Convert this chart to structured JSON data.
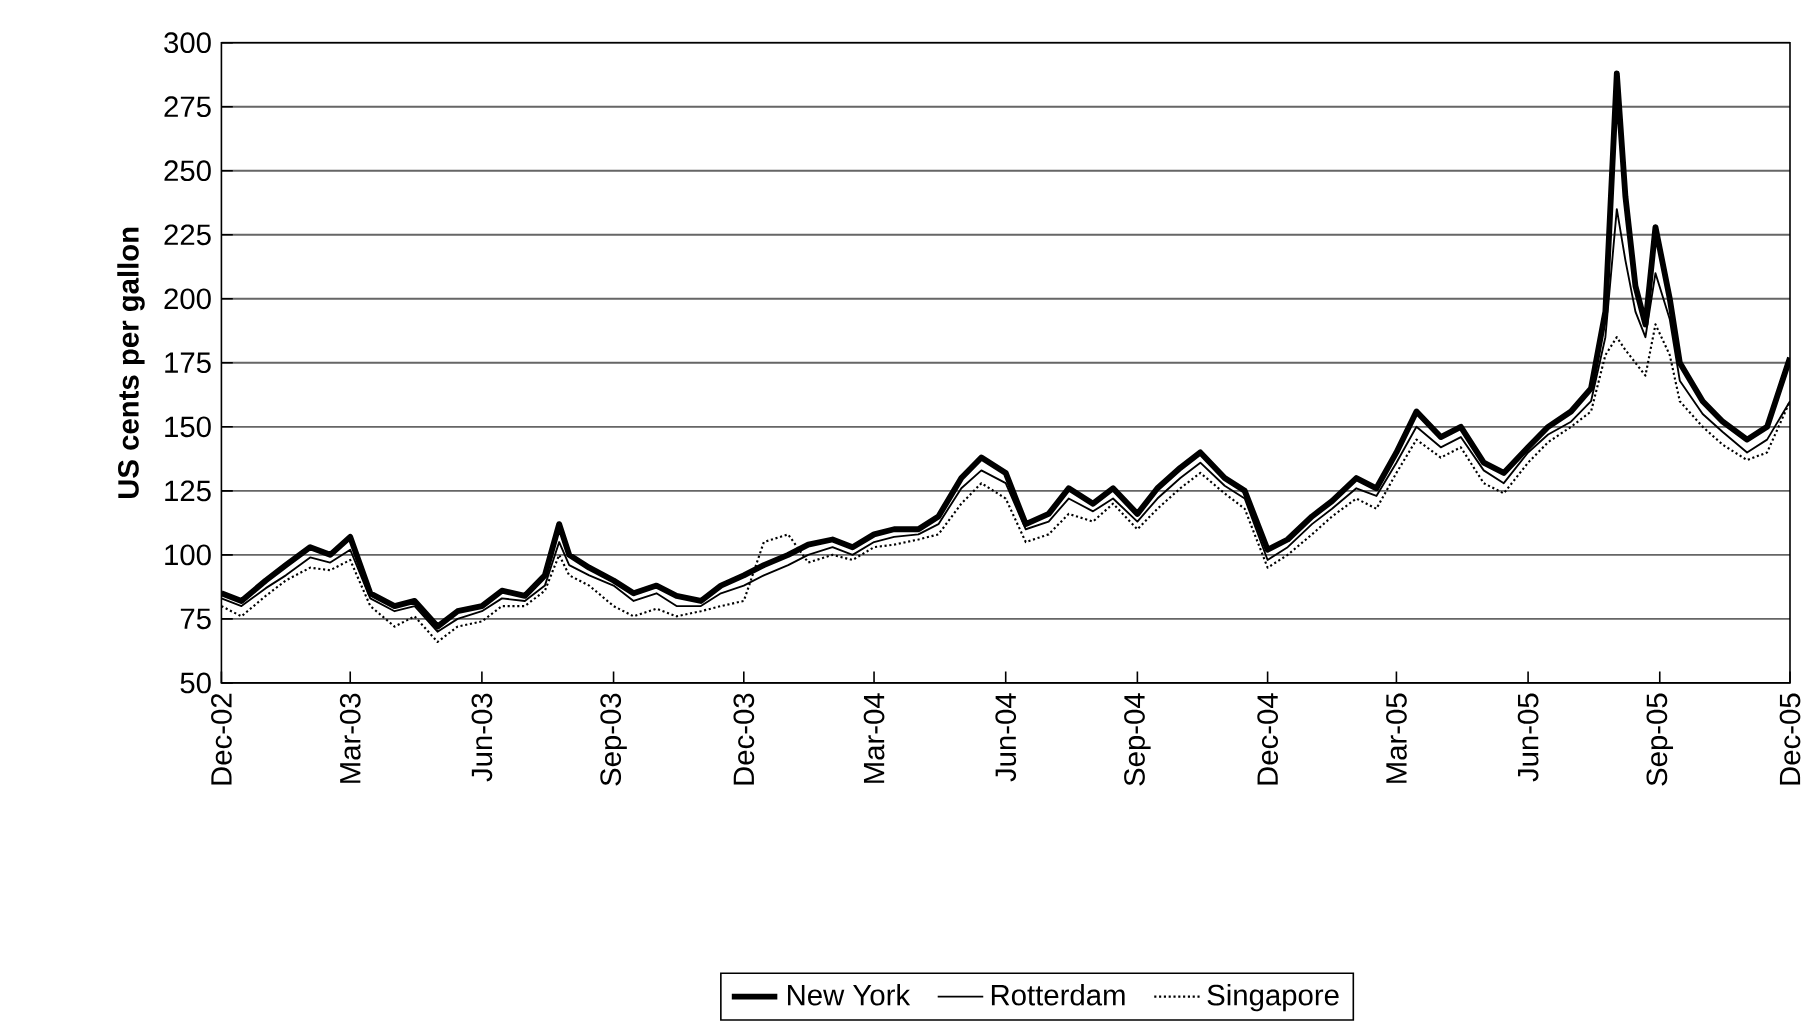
{
  "chart_data": {
    "type": "line",
    "ylabel": "US cents per gallon",
    "x": [
      "2002-12-01",
      "2002-12-15",
      "2003-01-01",
      "2003-01-15",
      "2003-02-01",
      "2003-02-15",
      "2003-03-01",
      "2003-03-15",
      "2003-04-01",
      "2003-04-15",
      "2003-05-01",
      "2003-05-15",
      "2003-06-01",
      "2003-06-15",
      "2003-07-01",
      "2003-07-15",
      "2003-07-25",
      "2003-08-01",
      "2003-08-15",
      "2003-09-01",
      "2003-09-15",
      "2003-10-01",
      "2003-10-15",
      "2003-11-01",
      "2003-11-15",
      "2003-12-01",
      "2003-12-15",
      "2004-01-01",
      "2004-01-15",
      "2004-02-01",
      "2004-02-15",
      "2004-03-01",
      "2004-03-15",
      "2004-04-01",
      "2004-04-15",
      "2004-05-01",
      "2004-05-15",
      "2004-06-01",
      "2004-06-15",
      "2004-07-01",
      "2004-07-15",
      "2004-08-01",
      "2004-08-15",
      "2004-09-01",
      "2004-09-15",
      "2004-10-01",
      "2004-10-15",
      "2004-11-01",
      "2004-11-15",
      "2004-12-01",
      "2004-12-15",
      "2005-01-01",
      "2005-01-15",
      "2005-02-01",
      "2005-02-15",
      "2005-03-01",
      "2005-03-15",
      "2005-04-01",
      "2005-04-15",
      "2005-05-01",
      "2005-05-15",
      "2005-06-01",
      "2005-06-15",
      "2005-07-01",
      "2005-07-15",
      "2005-07-25",
      "2005-08-02",
      "2005-08-08",
      "2005-08-15",
      "2005-08-22",
      "2005-08-29",
      "2005-09-08",
      "2005-09-15",
      "2005-10-01",
      "2005-10-15",
      "2005-11-01",
      "2005-11-15",
      "2005-12-01"
    ],
    "series": [
      {
        "name": "New York",
        "color": "#000000",
        "line_style": "solid",
        "values": [
          85,
          82,
          90,
          96,
          103,
          100,
          107,
          85,
          80,
          82,
          72,
          78,
          80,
          86,
          84,
          92,
          112,
          100,
          95,
          90,
          85,
          88,
          84,
          82,
          88,
          92,
          96,
          100,
          104,
          106,
          103,
          108,
          110,
          110,
          115,
          130,
          138,
          132,
          112,
          116,
          126,
          120,
          126,
          116,
          126,
          134,
          140,
          130,
          125,
          102,
          106,
          115,
          121,
          130,
          126,
          140,
          156,
          146,
          150,
          136,
          132,
          142,
          150,
          156,
          165,
          195,
          288,
          240,
          205,
          190,
          228,
          200,
          175,
          160,
          152,
          145,
          150,
          177
        ]
      },
      {
        "name": "Rotterdam",
        "color": "#000000",
        "line_style": "solid",
        "values": [
          83,
          80,
          87,
          92,
          99,
          97,
          102,
          83,
          78,
          80,
          70,
          75,
          78,
          83,
          82,
          88,
          105,
          96,
          92,
          88,
          82,
          85,
          80,
          80,
          85,
          88,
          92,
          96,
          100,
          103,
          100,
          105,
          107,
          108,
          112,
          126,
          133,
          128,
          110,
          113,
          122,
          117,
          122,
          113,
          122,
          130,
          136,
          127,
          122,
          98,
          103,
          112,
          118,
          126,
          123,
          136,
          150,
          142,
          146,
          133,
          128,
          140,
          147,
          152,
          160,
          185,
          235,
          215,
          195,
          185,
          210,
          192,
          168,
          155,
          148,
          140,
          145,
          160
        ]
      },
      {
        "name": "Singapore",
        "color": "#000000",
        "line_style": "dotted",
        "values": [
          80,
          76,
          84,
          90,
          95,
          94,
          98,
          80,
          72,
          76,
          66,
          72,
          74,
          80,
          80,
          86,
          100,
          92,
          88,
          80,
          76,
          79,
          76,
          78,
          80,
          82,
          105,
          108,
          97,
          100,
          98,
          103,
          104,
          106,
          108,
          120,
          128,
          122,
          105,
          108,
          116,
          113,
          120,
          110,
          118,
          126,
          132,
          124,
          118,
          95,
          100,
          108,
          115,
          122,
          118,
          132,
          145,
          138,
          142,
          128,
          124,
          136,
          144,
          150,
          156,
          178,
          185,
          180,
          175,
          170,
          190,
          178,
          160,
          150,
          143,
          137,
          140,
          160
        ]
      }
    ],
    "ylim": [
      50,
      300
    ],
    "yticks": [
      50,
      75,
      100,
      125,
      150,
      175,
      200,
      225,
      250,
      275,
      300
    ],
    "xlim": [
      "2002-12-01",
      "2005-12-01"
    ],
    "xticks": [
      {
        "value": "2002-12-01",
        "label": "Dec-02"
      },
      {
        "value": "2003-03-01",
        "label": "Mar-03"
      },
      {
        "value": "2003-06-01",
        "label": "Jun-03"
      },
      {
        "value": "2003-09-01",
        "label": "Sep-03"
      },
      {
        "value": "2003-12-01",
        "label": "Dec-03"
      },
      {
        "value": "2004-03-01",
        "label": "Mar-04"
      },
      {
        "value": "2004-06-01",
        "label": "Jun-04"
      },
      {
        "value": "2004-09-01",
        "label": "Sep-04"
      },
      {
        "value": "2004-12-01",
        "label": "Dec-04"
      },
      {
        "value": "2005-03-01",
        "label": "Mar-05"
      },
      {
        "value": "2005-06-01",
        "label": "Jun-05"
      },
      {
        "value": "2005-09-01",
        "label": "Sep-05"
      },
      {
        "value": "2005-12-01",
        "label": "Dec-05"
      }
    ],
    "grid": "y",
    "legend": "bottom",
    "marker": "none"
  }
}
